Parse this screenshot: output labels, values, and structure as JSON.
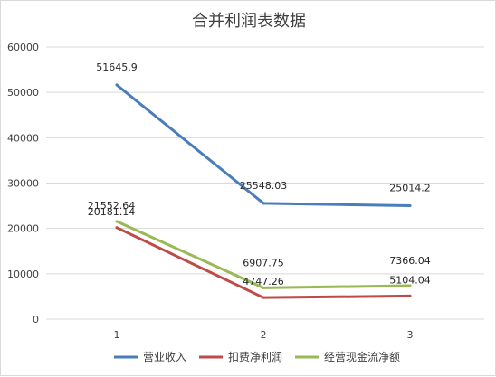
{
  "chart_data": {
    "type": "line",
    "title": "合并利润表数据",
    "categories": [
      "1",
      "2",
      "3"
    ],
    "ylim": [
      0,
      60000
    ],
    "yticks": [
      "0",
      "10000",
      "20000",
      "30000",
      "40000",
      "50000",
      "60000"
    ],
    "grid": true,
    "legend_position": "bottom",
    "series": [
      {
        "name": "营业收入",
        "values": [
          51645.9,
          25548.03,
          25014.2
        ],
        "labels": [
          "51645.9",
          "25548.03",
          "25014.2"
        ],
        "color": "#4a7ebb"
      },
      {
        "name": "扣费净利润",
        "values": [
          20181.14,
          4747.26,
          5104.04
        ],
        "labels": [
          "20181.14",
          "4747.26",
          "5104.04"
        ],
        "color": "#be4b48"
      },
      {
        "name": "经营现金流净额",
        "values": [
          21552.64,
          6907.75,
          7366.04
        ],
        "labels": [
          "21552.64",
          "6907.75",
          "7366.04"
        ],
        "color": "#98b954"
      }
    ]
  }
}
